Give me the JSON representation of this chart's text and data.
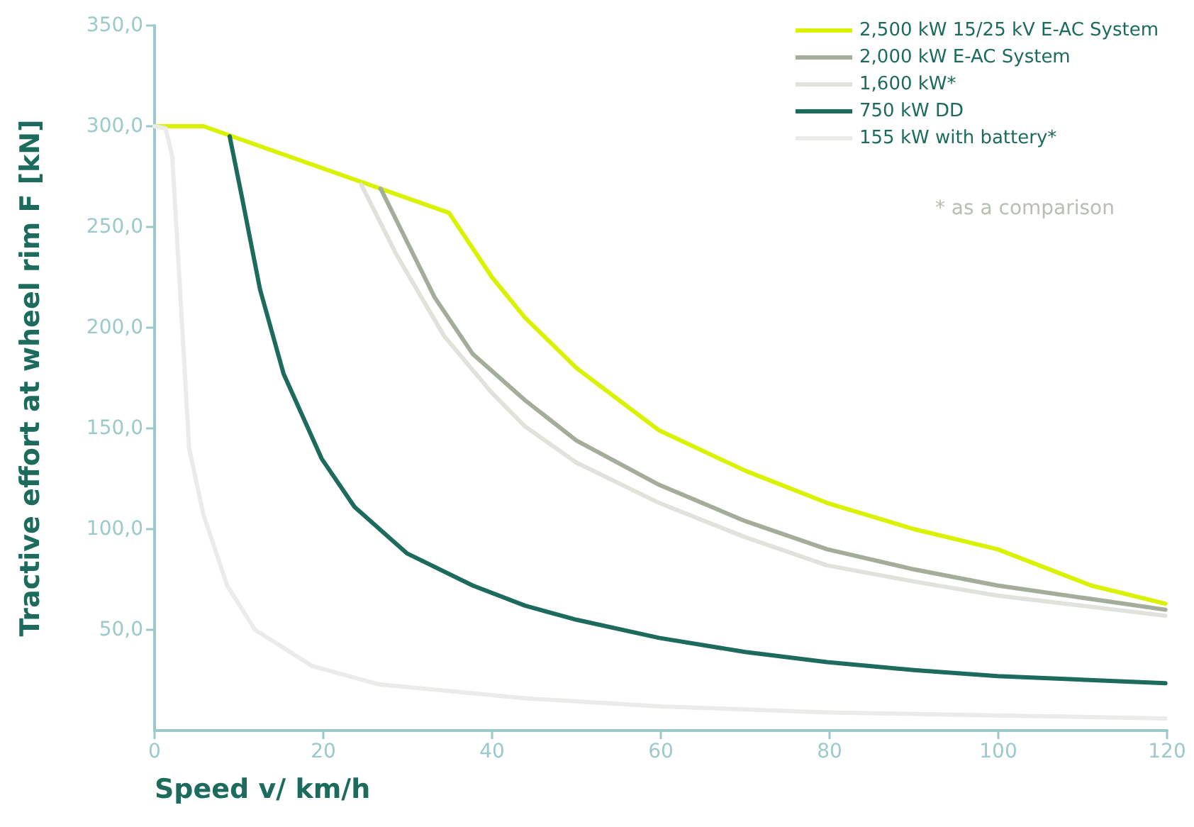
{
  "chart_data": {
    "type": "line",
    "xlabel": "Speed v/ km/h",
    "ylabel": "Tractive effort at wheel rim F [kN]",
    "annotations": [
      "* as a comparison"
    ],
    "xlim": [
      0,
      120
    ],
    "xticks": [
      0,
      20,
      40,
      60,
      80,
      100,
      120
    ],
    "ylim": [
      0,
      350
    ],
    "yticks": [
      {
        "value": 50,
        "label": "50,0"
      },
      {
        "value": 100,
        "label": "100,0"
      },
      {
        "value": 150,
        "label": "150,0"
      },
      {
        "value": 200,
        "label": "200,0"
      },
      {
        "value": 250,
        "label": "250,0"
      },
      {
        "value": 300,
        "label": "300,0"
      },
      {
        "value": 350,
        "label": "350,0"
      }
    ],
    "grid": false,
    "legend": "top right",
    "marker": "none",
    "line_style": "solid",
    "series": [
      {
        "name": "2,500 kW 15/25 kV E-AC System",
        "color": "#d9f200",
        "x": [
          0,
          5.8,
          34.9,
          40,
          43.9,
          50,
          59.8,
          70,
          79.7,
          90,
          99.9,
          111,
          119.8
        ],
        "values": [
          300,
          300,
          257,
          225,
          205,
          180,
          149,
          129,
          113,
          100,
          90,
          72,
          63
        ]
      },
      {
        "name": "2,000 kW E-AC System",
        "color": "#a3ad9a",
        "x": [
          26.8,
          33.2,
          37.7,
          43.9,
          50,
          59.8,
          70,
          79.7,
          90,
          99.9,
          119.8
        ],
        "values": [
          269,
          215,
          187,
          164,
          144,
          122,
          104,
          90,
          80,
          72,
          60
        ]
      },
      {
        "name": "1,600 kW*",
        "color": "#dfe3dc",
        "x": [
          24.5,
          28.7,
          34.3,
          39.9,
          43.9,
          50,
          59.8,
          70,
          79.7,
          90,
          99.9,
          119.8
        ],
        "values": [
          271,
          236,
          196,
          168,
          151,
          133,
          113,
          96,
          82,
          74,
          67,
          57
        ]
      },
      {
        "name": "750 kW DD",
        "color": "#1c6b5c",
        "x": [
          8.9,
          10.3,
          12.5,
          15.3,
          19.8,
          23.7,
          29.9,
          37.7,
          43.9,
          50,
          59.8,
          70,
          79.7,
          90,
          99.9,
          119.8
        ],
        "values": [
          295,
          266,
          219,
          177,
          135,
          111,
          88,
          72,
          62,
          55,
          46,
          39,
          34,
          30,
          27,
          23.5
        ]
      },
      {
        "name": "155 kW with battery*",
        "color": "#ebecea",
        "x": [
          0,
          1.3,
          2.1,
          3,
          4.1,
          5.8,
          8.6,
          11.9,
          18.7,
          26.5,
          43.9,
          60,
          79.7,
          100,
          119.8
        ],
        "values": [
          300,
          299,
          285,
          220,
          140,
          107,
          72,
          50,
          32,
          23,
          16,
          12,
          9,
          7.5,
          6
        ]
      }
    ]
  }
}
